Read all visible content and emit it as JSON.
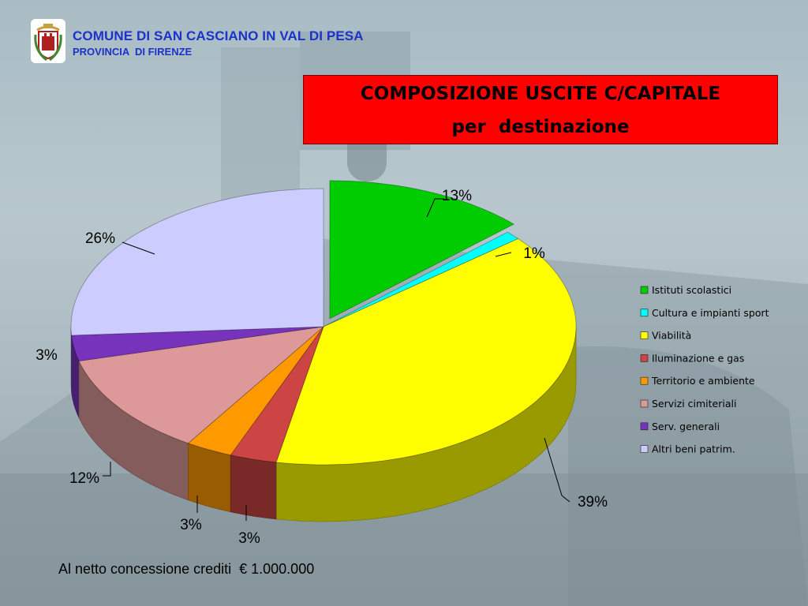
{
  "header": {
    "municipality": "COMUNE DI SAN CASCIANO IN VAL DI PESA",
    "province": "PROVINCIA  DI FIRENZE",
    "crest_icon": "municipal-crest-icon"
  },
  "title": {
    "line1": "COMPOSIZIONE USCITE C/CAPITALE",
    "line2": "per  destinazione"
  },
  "footnote": "Al netto concessione crediti  € 1.000.000",
  "chart_data": {
    "type": "pie",
    "style": "3d-exploded",
    "legend_position": "right",
    "categories": [
      "Istituti scolastici",
      "Cultura e impianti sport",
      "Viabilità",
      "Iluminazione e gas",
      "Territorio e ambiente",
      "Servizi cimiteriali",
      "Serv. generali",
      "Altri beni patrim."
    ],
    "values": [
      13,
      1,
      39,
      3,
      3,
      12,
      3,
      26
    ],
    "labels": [
      "13%",
      "1%",
      "39%",
      "3%",
      "3%",
      "12%",
      "3%",
      "26%"
    ],
    "colors": [
      "#00cc00",
      "#00ffff",
      "#ffff00",
      "#cc4444",
      "#ff9900",
      "#dd9999",
      "#7733bb",
      "#ccccff"
    ]
  }
}
